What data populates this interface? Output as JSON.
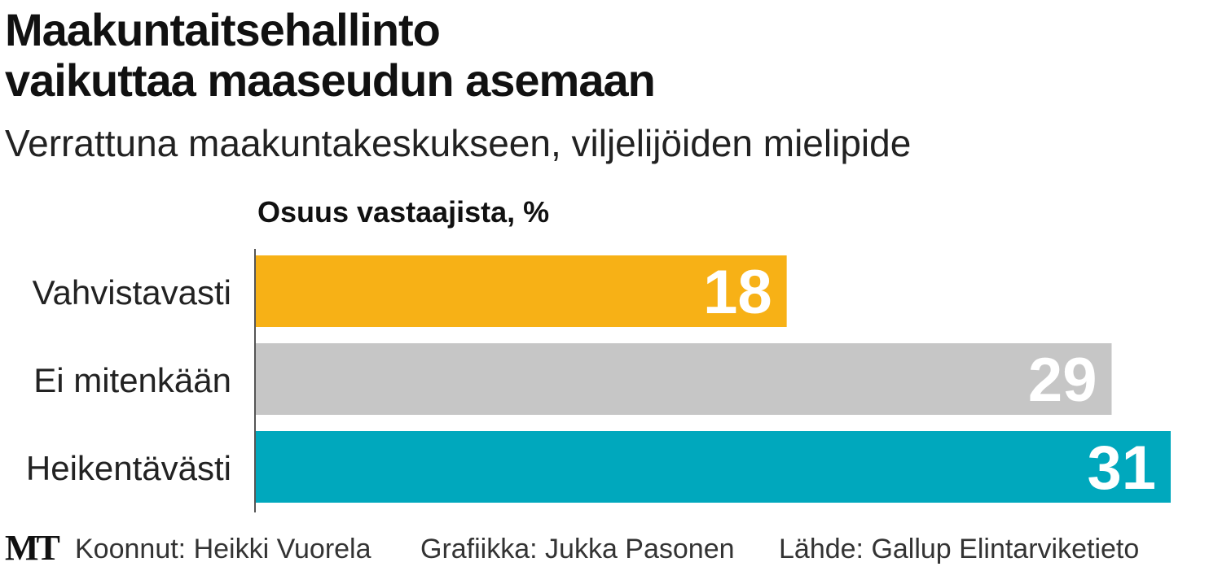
{
  "title_line1": "Maakuntaitsehallinto",
  "title_line2": "vaikuttaa maaseudun asemaan",
  "subtitle": "Verrattuna maakuntakeskukseen, viljelijöiden mielipide",
  "footer": {
    "logo": "MT",
    "compiled": "Koonnut: Heikki Vuorela",
    "graphics": "Grafiikka: Jukka Pasonen",
    "source": "Lähde: Gallup Elintarviketieto"
  },
  "chart_data": {
    "type": "bar",
    "orientation": "horizontal",
    "xlabel": "Osuus vastaajista, %",
    "categories": [
      "Vahvistavasti",
      "Ei mitenkään",
      "Heikentävästi"
    ],
    "values": [
      18,
      29,
      31
    ],
    "colors": [
      "#F7B116",
      "#C6C6C6",
      "#00A8BD"
    ],
    "xlim": [
      0,
      31
    ],
    "grid": false,
    "legend": "none"
  }
}
